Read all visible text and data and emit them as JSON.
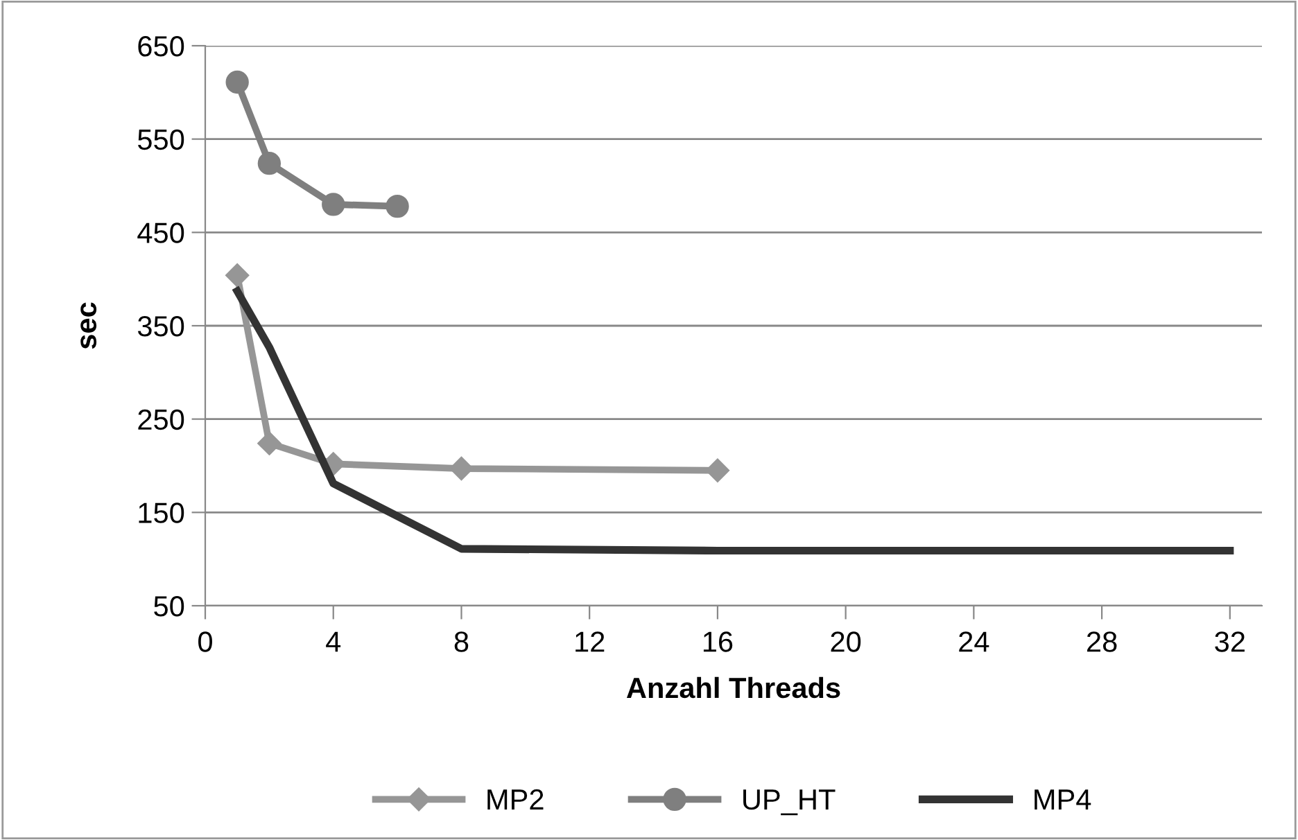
{
  "chart_data": {
    "type": "line",
    "xlabel": "Anzahl Threads",
    "ylabel": "sec",
    "xlim": [
      0,
      33
    ],
    "xticks": [
      0,
      4,
      8,
      12,
      16,
      20,
      24,
      28,
      32
    ],
    "ylim": [
      50,
      650
    ],
    "yticks": [
      50,
      150,
      250,
      350,
      450,
      550,
      650
    ],
    "grid": "y",
    "legend": "bottom",
    "series": [
      {
        "name": "MP2",
        "color": "#969696",
        "marker": "diamond",
        "x": [
          1,
          2,
          4,
          8,
          16
        ],
        "values": [
          404,
          224,
          202,
          197,
          195
        ]
      },
      {
        "name": "UP_HT",
        "color": "#7f7f7f",
        "marker": "circle",
        "x": [
          1,
          2,
          4,
          6
        ],
        "values": [
          611,
          524,
          480,
          478
        ]
      },
      {
        "name": "MP4",
        "color": "#333333",
        "marker": "none",
        "x": [
          1,
          2,
          4,
          8,
          16,
          32
        ],
        "values": [
          387,
          327,
          181,
          111,
          109,
          109
        ]
      }
    ]
  }
}
